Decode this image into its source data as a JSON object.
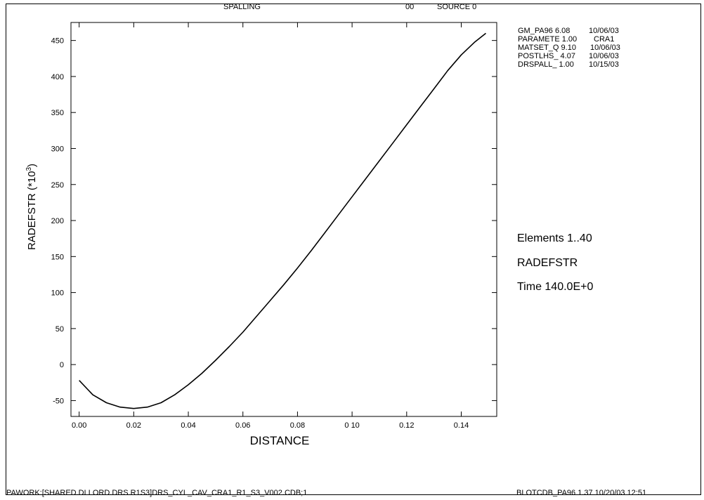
{
  "header": {
    "title": "SPALLING",
    "code": "00",
    "source": "SOURCE 0"
  },
  "info": [
    {
      "name": "GM_PA96 6.08",
      "value": "10/06/03"
    },
    {
      "name": "PARAMETE 1.00",
      "value": "CRA1"
    },
    {
      "name": "MATSET_Q 9.10",
      "value": "10/06/03"
    },
    {
      "name": "POSTLHS_ 4.07",
      "value": "10/06/03"
    },
    {
      "name": "DRSPALL_ 1.00",
      "value": "10/15/03"
    }
  ],
  "side_labels": {
    "elements": "Elements 1..40",
    "variable": "RADEFSTR",
    "time": "Time 140.0E+0"
  },
  "footer": {
    "left": "PAWORK:[SHARED.DLLORD.DRS.R1S3]DRS_CYL_CAV_CRA1_R1_S3_V002.CDB;1",
    "right": "BLOTCDB_PA96 1.37 10/20/03 12:51"
  },
  "chart_data": {
    "type": "line",
    "xlabel": "DISTANCE",
    "ylabel": "RADEFSTR (*10",
    "ylabel_exp": "3",
    "ylabel_close": ")",
    "xlim": [
      -0.003,
      0.153
    ],
    "ylim": [
      -72,
      475
    ],
    "xticks": [
      0.0,
      0.02,
      0.04,
      0.06,
      0.08,
      0.1,
      0.12,
      0.14
    ],
    "xtick_labels": [
      "0.00",
      "0.02",
      "0.04",
      "0.06",
      "0.08",
      "0 10",
      "0.12",
      "0.14"
    ],
    "yticks": [
      -50,
      0,
      50,
      100,
      150,
      200,
      250,
      300,
      350,
      400,
      450
    ],
    "ytick_labels": [
      "-50",
      "0",
      "50",
      "100",
      "150",
      "200",
      "250",
      "300",
      "350",
      "400",
      "450"
    ],
    "grid": false,
    "series": [
      {
        "x": [
          0.0,
          0.005,
          0.01,
          0.015,
          0.02,
          0.025,
          0.03,
          0.035,
          0.04,
          0.045,
          0.05,
          0.055,
          0.06,
          0.065,
          0.07,
          0.075,
          0.08,
          0.085,
          0.09,
          0.095,
          0.1,
          0.105,
          0.11,
          0.115,
          0.12,
          0.125,
          0.13,
          0.135,
          0.14,
          0.145,
          0.149
        ],
        "y": [
          -22,
          -42,
          -53,
          -59,
          -61,
          -59,
          -53,
          -42,
          -28,
          -12,
          6,
          25,
          45,
          67,
          89,
          111,
          134,
          158,
          183,
          208,
          233,
          258,
          283,
          308,
          333,
          358,
          383,
          408,
          430,
          448,
          460
        ]
      }
    ]
  }
}
